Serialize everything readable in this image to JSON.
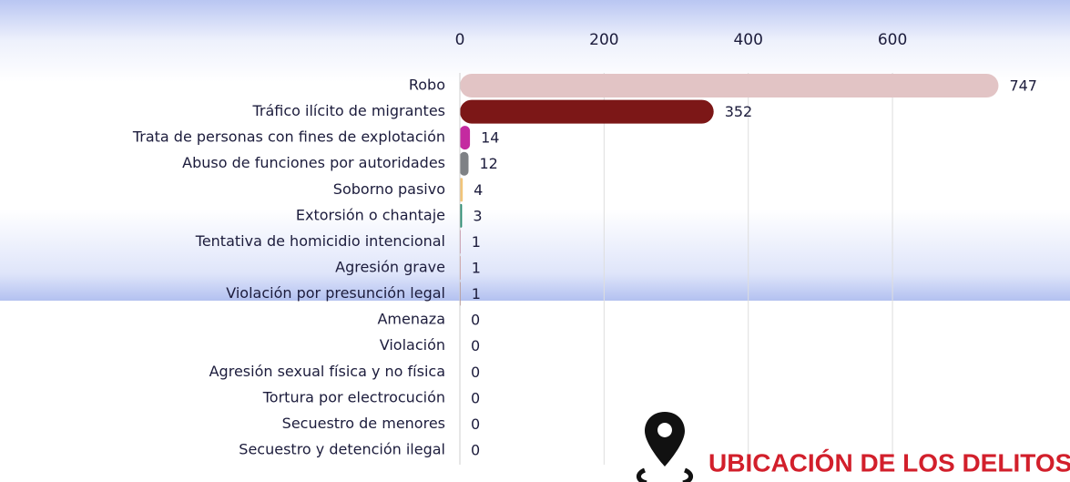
{
  "chart_data": {
    "type": "barh",
    "categories": [
      "Robo",
      "Tráfico ilícito de migrantes",
      "Trata de personas con fines de explotación",
      "Abuso de funciones por autoridades",
      "Soborno pasivo",
      "Extorsión o chantaje",
      "Tentativa de homicidio intencional",
      "Agresión grave",
      "Violación por presunción legal",
      "Amenaza",
      "Violación",
      "Agresión sexual física y no física",
      "Tortura por electrocución",
      "Secuestro de menores",
      "Secuestro y detención ilegal"
    ],
    "values": [
      747,
      352,
      14,
      12,
      4,
      3,
      1,
      1,
      1,
      0,
      0,
      0,
      0,
      0,
      0
    ],
    "colors": [
      "#e2c4c5",
      "#7c1717",
      "#c42aa0",
      "#7e8185",
      "#f2c57a",
      "#2b8c72",
      "#b3305f",
      "#c24343",
      "#8c3b31",
      "#999999",
      "#999999",
      "#999999",
      "#999999",
      "#999999",
      "#999999"
    ],
    "xlim": [
      0,
      850
    ],
    "xticks": [
      0,
      200,
      400,
      600
    ],
    "grid": true,
    "annotation": "UBICACIÓN  DE LOS DELITOS"
  }
}
